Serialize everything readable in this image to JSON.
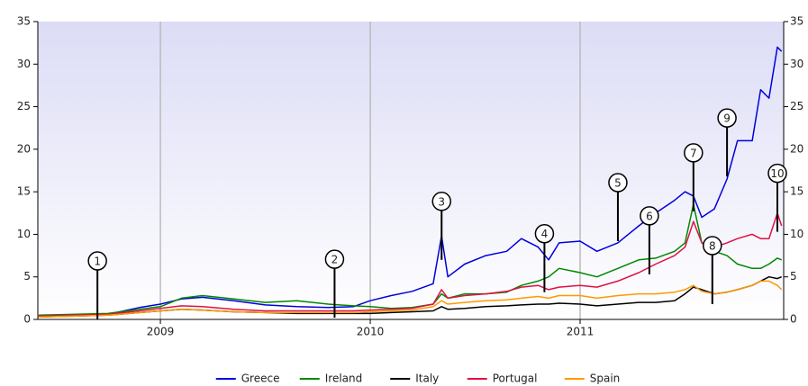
{
  "chart_data": {
    "type": "line",
    "x": [
      2008.42,
      2008.6,
      2008.75,
      2008.9,
      2009.0,
      2009.1,
      2009.2,
      2009.35,
      2009.5,
      2009.65,
      2009.8,
      2009.92,
      2010.0,
      2010.1,
      2010.2,
      2010.3,
      2010.34,
      2010.37,
      2010.45,
      2010.55,
      2010.65,
      2010.72,
      2010.8,
      2010.85,
      2010.9,
      2011.0,
      2011.08,
      2011.18,
      2011.28,
      2011.36,
      2011.45,
      2011.5,
      2011.54,
      2011.58,
      2011.64,
      2011.7,
      2011.75,
      2011.82,
      2011.86,
      2011.9,
      2011.94,
      2011.96
    ],
    "series": [
      {
        "name": "Greece",
        "color": "#0000dd",
        "values": [
          0.4,
          0.5,
          0.6,
          1.4,
          1.8,
          2.4,
          2.6,
          2.2,
          1.7,
          1.5,
          1.4,
          1.5,
          2.2,
          2.8,
          3.3,
          4.2,
          9.8,
          5.0,
          6.5,
          7.5,
          8.0,
          9.5,
          8.5,
          7.0,
          9.0,
          9.2,
          8.0,
          9.0,
          11.0,
          12.5,
          14.0,
          15.0,
          14.5,
          12.0,
          13.0,
          16.5,
          21.0,
          21.0,
          27.0,
          26.0,
          32.0,
          31.5
        ]
      },
      {
        "name": "Ireland",
        "color": "#008800",
        "values": [
          0.5,
          0.6,
          0.7,
          1.2,
          1.5,
          2.5,
          2.8,
          2.4,
          2.0,
          2.2,
          1.8,
          1.6,
          1.5,
          1.3,
          1.4,
          1.8,
          3.0,
          2.5,
          3.0,
          3.0,
          3.2,
          4.0,
          4.5,
          5.0,
          6.0,
          5.5,
          5.0,
          6.0,
          7.0,
          7.2,
          8.0,
          9.0,
          13.5,
          9.0,
          8.0,
          7.5,
          6.5,
          6.0,
          6.0,
          6.5,
          7.2,
          7.0
        ]
      },
      {
        "name": "Italy",
        "color": "#000000",
        "values": [
          0.3,
          0.4,
          0.5,
          0.8,
          1.0,
          1.2,
          1.1,
          0.9,
          0.8,
          0.7,
          0.7,
          0.7,
          0.7,
          0.8,
          0.9,
          1.0,
          1.5,
          1.2,
          1.3,
          1.5,
          1.6,
          1.7,
          1.8,
          1.8,
          1.9,
          1.8,
          1.6,
          1.8,
          2.0,
          2.0,
          2.2,
          3.0,
          3.8,
          3.5,
          3.0,
          3.2,
          3.5,
          4.0,
          4.5,
          5.0,
          4.8,
          5.0
        ]
      },
      {
        "name": "Portugal",
        "color": "#dd1144",
        "values": [
          0.4,
          0.5,
          0.6,
          1.0,
          1.3,
          1.6,
          1.5,
          1.2,
          1.0,
          1.0,
          1.0,
          1.0,
          1.1,
          1.2,
          1.3,
          1.8,
          3.5,
          2.5,
          2.8,
          3.0,
          3.3,
          3.8,
          4.0,
          3.5,
          3.8,
          4.0,
          3.8,
          4.5,
          5.5,
          6.5,
          7.5,
          8.5,
          11.5,
          9.0,
          8.5,
          9.0,
          9.5,
          10.0,
          9.5,
          9.5,
          12.5,
          11.0
        ]
      },
      {
        "name": "Spain",
        "color": "#ff9900",
        "values": [
          0.3,
          0.4,
          0.5,
          0.8,
          1.0,
          1.2,
          1.1,
          0.9,
          0.8,
          0.8,
          0.8,
          0.8,
          0.9,
          1.0,
          1.1,
          1.5,
          2.2,
          1.8,
          2.0,
          2.2,
          2.3,
          2.5,
          2.7,
          2.5,
          2.8,
          2.8,
          2.5,
          2.8,
          3.0,
          3.0,
          3.2,
          3.5,
          4.0,
          3.3,
          3.0,
          3.2,
          3.5,
          4.0,
          4.5,
          4.5,
          4.0,
          3.5
        ]
      }
    ],
    "xlim": [
      2008.416,
      2011.97
    ],
    "xticks": [
      2009,
      2010,
      2011
    ],
    "ylim": [
      0,
      35
    ],
    "yticks": [
      0,
      5,
      10,
      15,
      20,
      25,
      30,
      35
    ],
    "grid": true,
    "legend": "bottom",
    "annotations": [
      {
        "label": "1",
        "x": 2008.7,
        "y": 0
      },
      {
        "label": "2",
        "x": 2009.83,
        "y": 0.2
      },
      {
        "label": "3",
        "x": 2010.34,
        "y": 7
      },
      {
        "label": "4",
        "x": 2010.83,
        "y": 3.2
      },
      {
        "label": "5",
        "x": 2011.18,
        "y": 9.2
      },
      {
        "label": "6",
        "x": 2011.33,
        "y": 5.3
      },
      {
        "label": "7",
        "x": 2011.54,
        "y": 12.7
      },
      {
        "label": "8",
        "x": 2011.63,
        "y": 1.8
      },
      {
        "label": "9",
        "x": 2011.7,
        "y": 16.8
      },
      {
        "label": "10",
        "x": 2011.94,
        "y": 10.3
      }
    ]
  }
}
